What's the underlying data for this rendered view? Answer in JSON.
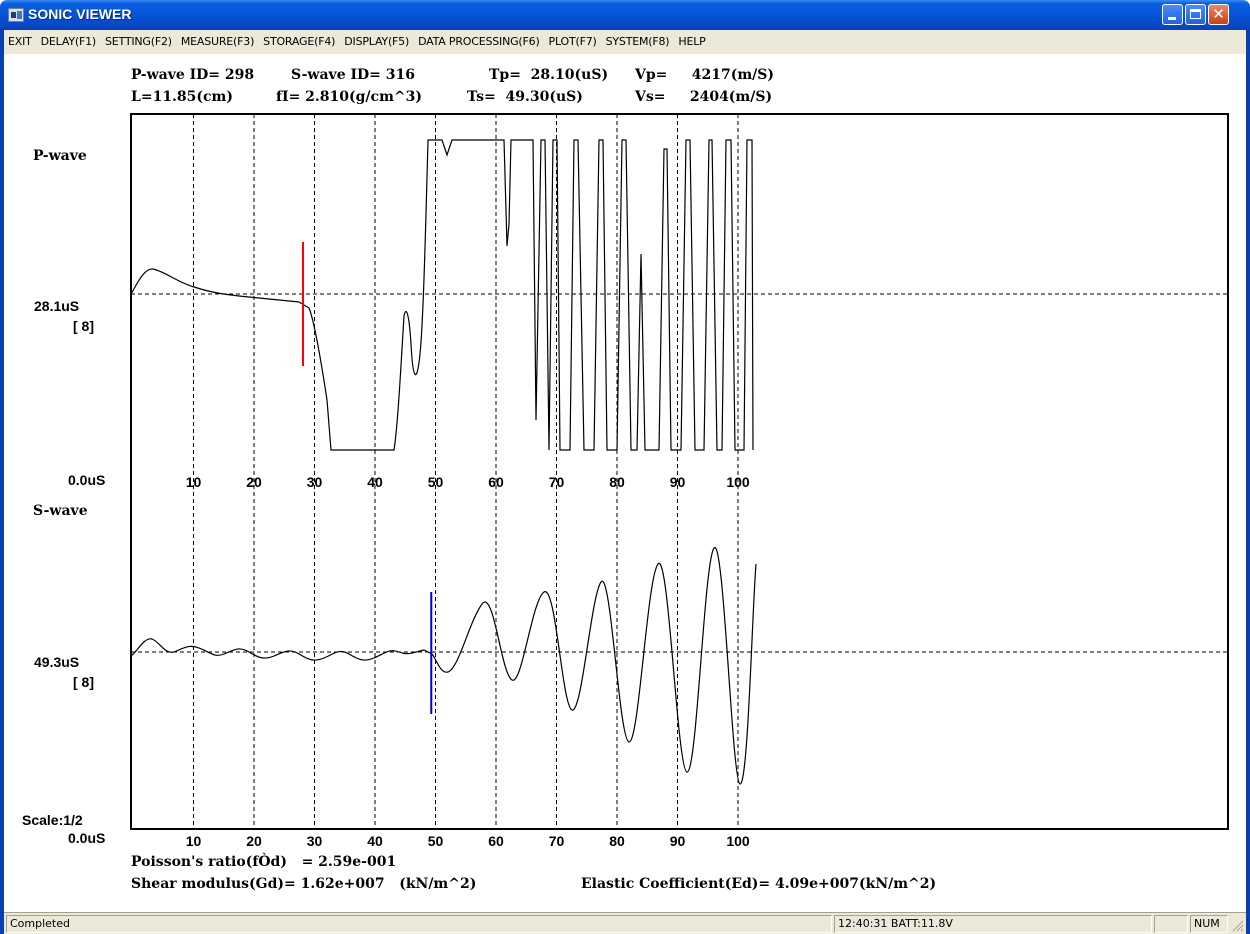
{
  "window": {
    "title": "SONIC VIEWER",
    "controls": [
      "minimize",
      "maximize",
      "close"
    ],
    "colors": {
      "title_bar": "#0653d6",
      "close_button": "#c7411a"
    }
  },
  "menu": {
    "items": [
      {
        "label": "EXIT"
      },
      {
        "label": "DELAY(F1)"
      },
      {
        "label": "SETTING(F2)"
      },
      {
        "label": "MEASURE(F3)"
      },
      {
        "label": "STORAGE(F4)"
      },
      {
        "label": "DISPLAY(F5)"
      },
      {
        "label": "DATA PROCESSING(F6)"
      },
      {
        "label": "PLOT(F7)"
      },
      {
        "label": "SYSTEM(F8)"
      },
      {
        "label": "HELP"
      }
    ]
  },
  "header": {
    "pwave_id": "P-wave ID= 298",
    "swave_id": "S-wave ID= 316",
    "tp": "Tp=  28.10(uS)",
    "vp": "Vp=     4217(m/S)",
    "length": "L=11.85(cm)",
    "density": "fI= 2.810(g/cm^3)",
    "ts": "Ts=  49.30(uS)",
    "vs": "Vs=     2404(m/S)"
  },
  "pwave_panel": {
    "title": "P-wave",
    "pick_label": "28.1uS",
    "stack_label": "[ 8]",
    "origin_label": "0.0uS",
    "pick_time": 28.1,
    "pick_color": "#ff0000"
  },
  "swave_panel": {
    "title": "S-wave",
    "pick_label": "49.3uS",
    "stack_label": "[ 8]",
    "scale_label": "Scale:1/2",
    "origin_label": "0.0uS",
    "pick_time": 49.3,
    "pick_color": "#0000cc"
  },
  "x_axis": {
    "ticks": [
      "10",
      "20",
      "30",
      "40",
      "50",
      "60",
      "70",
      "80",
      "90",
      "100"
    ],
    "tick_values": [
      10,
      20,
      30,
      40,
      50,
      60,
      70,
      80,
      90,
      100
    ]
  },
  "results": {
    "poisson": "Poisson's ratio(fÒd)   = 2.59e-001",
    "shear": "Shear modulus(Gd)= 1.62e+007   (kN/m^2)",
    "elastic": "Elastic Coefficient(Ed)= 4.09e+007(kN/m^2)"
  },
  "statusbar": {
    "status": "Completed",
    "time_batt": "12:40:31 BATT:11.8V",
    "empty": "",
    "num": "NUM"
  }
}
